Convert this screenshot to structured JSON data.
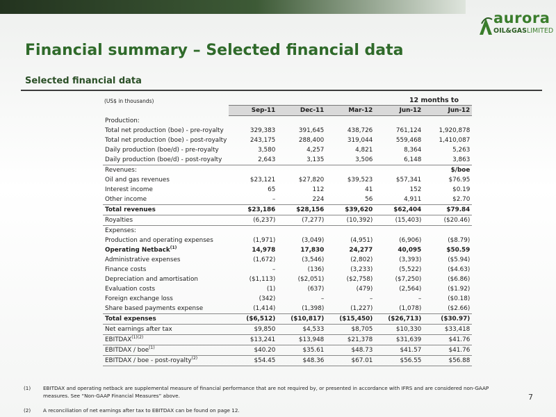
{
  "logo": {
    "name": "aurora",
    "sub_bold": "OIL&GAS",
    "sub_light": "LIMITED"
  },
  "title": "Financial summary – Selected financial data",
  "section": "Selected financial data",
  "table": {
    "unit_note": "(US$ in thousands)",
    "period_header": "12 months to",
    "columns": [
      "Sep-11",
      "Dec-11",
      "Mar-12",
      "Jun-12",
      "Jun-12"
    ],
    "rows": [
      {
        "label": "Production:"
      },
      {
        "label": "Total net production (boe) - pre-royalty",
        "cells": [
          "329,383",
          "391,645",
          "438,726",
          "761,124",
          "1,920,878"
        ]
      },
      {
        "label": "Total net production (boe) - post-royalty",
        "cells": [
          "243,175",
          "288,400",
          "319,044",
          "559,468",
          "1,410,087"
        ]
      },
      {
        "label": "Daily production (boe/d) - pre-royalty",
        "cells": [
          "3,580",
          "4,257",
          "4,821",
          "8,364",
          "5,263"
        ]
      },
      {
        "label": "Daily production (boe/d) - post-royalty",
        "cells": [
          "2,643",
          "3,135",
          "3,506",
          "6,148",
          "3,863"
        ]
      },
      {
        "label": "Revenues:",
        "cells": [
          null,
          null,
          null,
          null,
          "$/boe"
        ]
      },
      {
        "label": "Oil and gas revenues",
        "cells": [
          "$23,121",
          "$27,820",
          "$39,523",
          "$57,341",
          "$76.95"
        ]
      },
      {
        "label": "Interest income",
        "cells": [
          "65",
          "112",
          "41",
          "152",
          "$0.19"
        ]
      },
      {
        "label": "Other income",
        "cells": [
          "–",
          "224",
          "56",
          "4,911",
          "$2.70"
        ]
      },
      {
        "label": "Total revenues",
        "cells": [
          "$23,186",
          "$28,156",
          "$39,620",
          "$62,404",
          "$79.84"
        ]
      },
      {
        "label": "Royalties",
        "cells": [
          "(6,237)",
          "(7,277)",
          "(10,392)",
          "(15,403)",
          "($20.46)"
        ]
      },
      {
        "label": "Expenses:"
      },
      {
        "label": "Production and operating expenses",
        "cells": [
          "(1,971)",
          "(3,049)",
          "(4,951)",
          "(6,906)",
          "($8.79)"
        ]
      },
      {
        "label": "Operating Netback",
        "sup": "(1)",
        "cells": [
          "14,978",
          "17,830",
          "24,277",
          "40,095",
          "$50.59"
        ]
      },
      {
        "label": "Administrative expenses",
        "cells": [
          "(1,672)",
          "(3,546)",
          "(2,802)",
          "(3,393)",
          "($5.94)"
        ]
      },
      {
        "label": "Finance costs",
        "cells": [
          "–",
          "(136)",
          "(3,233)",
          "(5,522)",
          "($4.63)"
        ]
      },
      {
        "label": "Depreciation and amortisation",
        "cells": [
          "($1,113)",
          "($2,051)",
          "($2,758)",
          "($7,250)",
          "($6.86)"
        ]
      },
      {
        "label": "Evaluation costs",
        "cells": [
          "(1)",
          "(637)",
          "(479)",
          "(2,564)",
          "($1.92)"
        ]
      },
      {
        "label": "Foreign exchange loss",
        "cells": [
          "(342)",
          "–",
          "–",
          "–",
          "($0.18)"
        ]
      },
      {
        "label": "Share based payments expense",
        "cells": [
          "(1,414)",
          "(1,398)",
          "(1,227)",
          "(1,078)",
          "($2.66)"
        ]
      },
      {
        "label": "Total expenses",
        "cells": [
          "($6,512)",
          "($10,817)",
          "($15,450)",
          "($26,713)",
          "($30.97)"
        ]
      },
      {
        "label": "Net earnings after tax",
        "cells": [
          "$9,850",
          "$4,533",
          "$8,705",
          "$10,330",
          "$33,418"
        ]
      },
      {
        "label": "EBITDAX",
        "sup": "(1)(2)",
        "cells": [
          "$13,241",
          "$13,948",
          "$21,378",
          "$31,639",
          "$41.76"
        ]
      },
      {
        "label": "EBITDAX / boe",
        "sup": "(1)",
        "cells": [
          "$40.20",
          "$35.61",
          "$48.73",
          "$41.57",
          "$41.76"
        ]
      },
      {
        "label": "EBITDAX / boe - post-royalty",
        "sup": "(2)",
        "cells": [
          "$54.45",
          "$48.36",
          "$67.01",
          "$56.55",
          "$56.88"
        ]
      }
    ]
  },
  "page_number": "7",
  "footnotes": [
    {
      "marker": "(1)",
      "text": "EBITDAX and operating netback are supplemental measure of financial performance that are not required by, or presented in accordance with IFRS and are considered non-GAAP measures. See “Non-GAAP Financial Measures” above."
    },
    {
      "marker": "(2)",
      "text": "A reconciliation of net earnings after tax to EBITDAX can be found on page 12."
    }
  ]
}
